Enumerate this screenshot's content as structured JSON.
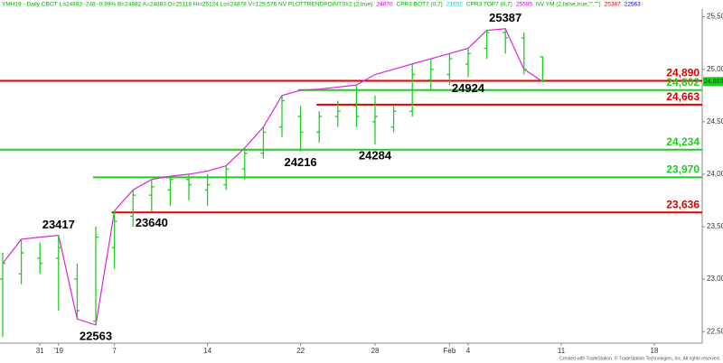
{
  "chart_data": {
    "type": "ohlc",
    "header": [
      {
        "text": "YMH19 - Daily  CBOT  L=24883  -248  -0.99%  B=24882  A=24883  O=25118  Hi=25124  Lo=24878  V=125,576  NV  PLOTTRENDPOINTS#2 (2,true)",
        "color": "#00aa00"
      },
      {
        "text": "24870",
        "color": "#cc00cc"
      },
      {
        "text": "CPR3 BOT7 (0,7)",
        "color": "#00aa00"
      },
      {
        "text": "21652",
        "color": "#00cccc"
      },
      {
        "text": "CPR3 TOP7 (0,7)",
        "color": "#00aa00"
      },
      {
        "text": "25585",
        "color": "#cc00cc"
      },
      {
        "text": "NV YM (2,false,true,\"\",\"\")",
        "color": "#00aa00"
      },
      {
        "text": "25387",
        "color": "#cc0000"
      },
      {
        "text": "22563",
        "color": "#0000cc"
      }
    ],
    "categories": [
      null,
      null,
      "31",
      "'19",
      null,
      null,
      "7",
      null,
      null,
      null,
      null,
      "14",
      null,
      null,
      null,
      null,
      "22",
      null,
      null,
      null,
      "28",
      null,
      null,
      null,
      "Feb",
      "4",
      null,
      null,
      null,
      null,
      "11",
      null,
      null,
      null,
      null,
      "18",
      null
    ],
    "bar_color": "#22cc22",
    "open": [
      23000,
      23050,
      23200,
      23200,
      23000,
      22600,
      23300,
      23600,
      23800,
      23850,
      23950,
      23850,
      23900,
      24050,
      24200,
      24450,
      24550,
      24400,
      24550,
      24650,
      24500,
      24450,
      24600,
      24900,
      24950,
      25050,
      25200,
      25350,
      25300,
      25118,
      null,
      null,
      null,
      null,
      null,
      null,
      null
    ],
    "high": [
      23250,
      23380,
      23350,
      23417,
      23150,
      23500,
      23650,
      23850,
      23950,
      23980,
      24000,
      24000,
      24080,
      24250,
      24450,
      24750,
      24650,
      24600,
      24700,
      24850,
      24750,
      24650,
      25050,
      25100,
      25150,
      25200,
      25370,
      25387,
      25350,
      25124,
      null,
      null,
      null,
      null,
      null,
      null,
      null
    ],
    "low": [
      22450,
      22950,
      23050,
      22700,
      22620,
      22563,
      23100,
      23500,
      23640,
      23700,
      23750,
      23700,
      23850,
      23950,
      24150,
      24350,
      24216,
      24300,
      24450,
      24450,
      24284,
      24400,
      24550,
      24800,
      24850,
      24924,
      25100,
      25150,
      24950,
      24878,
      null,
      null,
      null,
      null,
      null,
      null,
      null
    ],
    "close": [
      23150,
      23250,
      23150,
      23300,
      22700,
      23400,
      23550,
      23800,
      23880,
      23950,
      23900,
      23900,
      24050,
      24200,
      24400,
      24700,
      24400,
      24550,
      24600,
      24550,
      24550,
      24600,
      24950,
      25000,
      25100,
      25150,
      25350,
      25300,
      25000,
      24883,
      null,
      null,
      null,
      null,
      null,
      null,
      null
    ],
    "trend": {
      "color": "#dd22dd",
      "values": [
        23150,
        23380,
        23400,
        23417,
        22620,
        22563,
        23650,
        23850,
        23950,
        23980,
        24000,
        24030,
        24080,
        24250,
        24450,
        24750,
        24800,
        24810,
        24830,
        24850,
        24950,
        25000,
        25050,
        25100,
        25150,
        25200,
        25370,
        25387,
        25000,
        24883,
        null,
        null,
        null,
        null,
        null,
        null,
        null
      ]
    },
    "levels": [
      {
        "value": 24890,
        "label": "24,890",
        "color": "#dd0000",
        "start_index": 0
      },
      {
        "value": 24802,
        "label": "24,802",
        "color": "#22cc22",
        "start_index": 16
      },
      {
        "value": 24663,
        "label": "24,663",
        "color": "#dd0000",
        "start_index": 17
      },
      {
        "value": 24234,
        "label": "24,234",
        "color": "#22cc22",
        "start_index": 0
      },
      {
        "value": 23970,
        "label": "23,970",
        "color": "#22cc22",
        "start_index": 5
      },
      {
        "value": 23636,
        "label": "23,636",
        "color": "#dd0000",
        "start_index": 6
      }
    ],
    "annotations": [
      {
        "text": "25387",
        "bar": 27,
        "at": "high"
      },
      {
        "text": "23417",
        "bar": 3,
        "at": "high"
      },
      {
        "text": "22563",
        "bar": 5,
        "at": "low"
      },
      {
        "text": "23640",
        "bar": 8,
        "at": "low"
      },
      {
        "text": "24216",
        "bar": 16,
        "at": "low"
      },
      {
        "text": "24284",
        "bar": 20,
        "at": "low"
      },
      {
        "text": "24924",
        "bar": 25,
        "at": "low"
      }
    ],
    "last_price": {
      "value": 24883,
      "label": "24,883",
      "color": "#22cc22"
    },
    "ylim": [
      22390,
      25660
    ],
    "yticks": [
      {
        "value": 22500,
        "label": "22,500"
      },
      {
        "value": 23000,
        "label": "23,000"
      },
      {
        "value": 23500,
        "label": "23,500"
      },
      {
        "value": 24000,
        "label": "24,000"
      },
      {
        "value": 24500,
        "label": "24,500"
      },
      {
        "value": 25000,
        "label": "25,000"
      },
      {
        "value": 25500,
        "label": "25,500"
      }
    ],
    "footer": "Created with TradeStation. © TradeStation Technologies, Inc. All rights reserved."
  }
}
